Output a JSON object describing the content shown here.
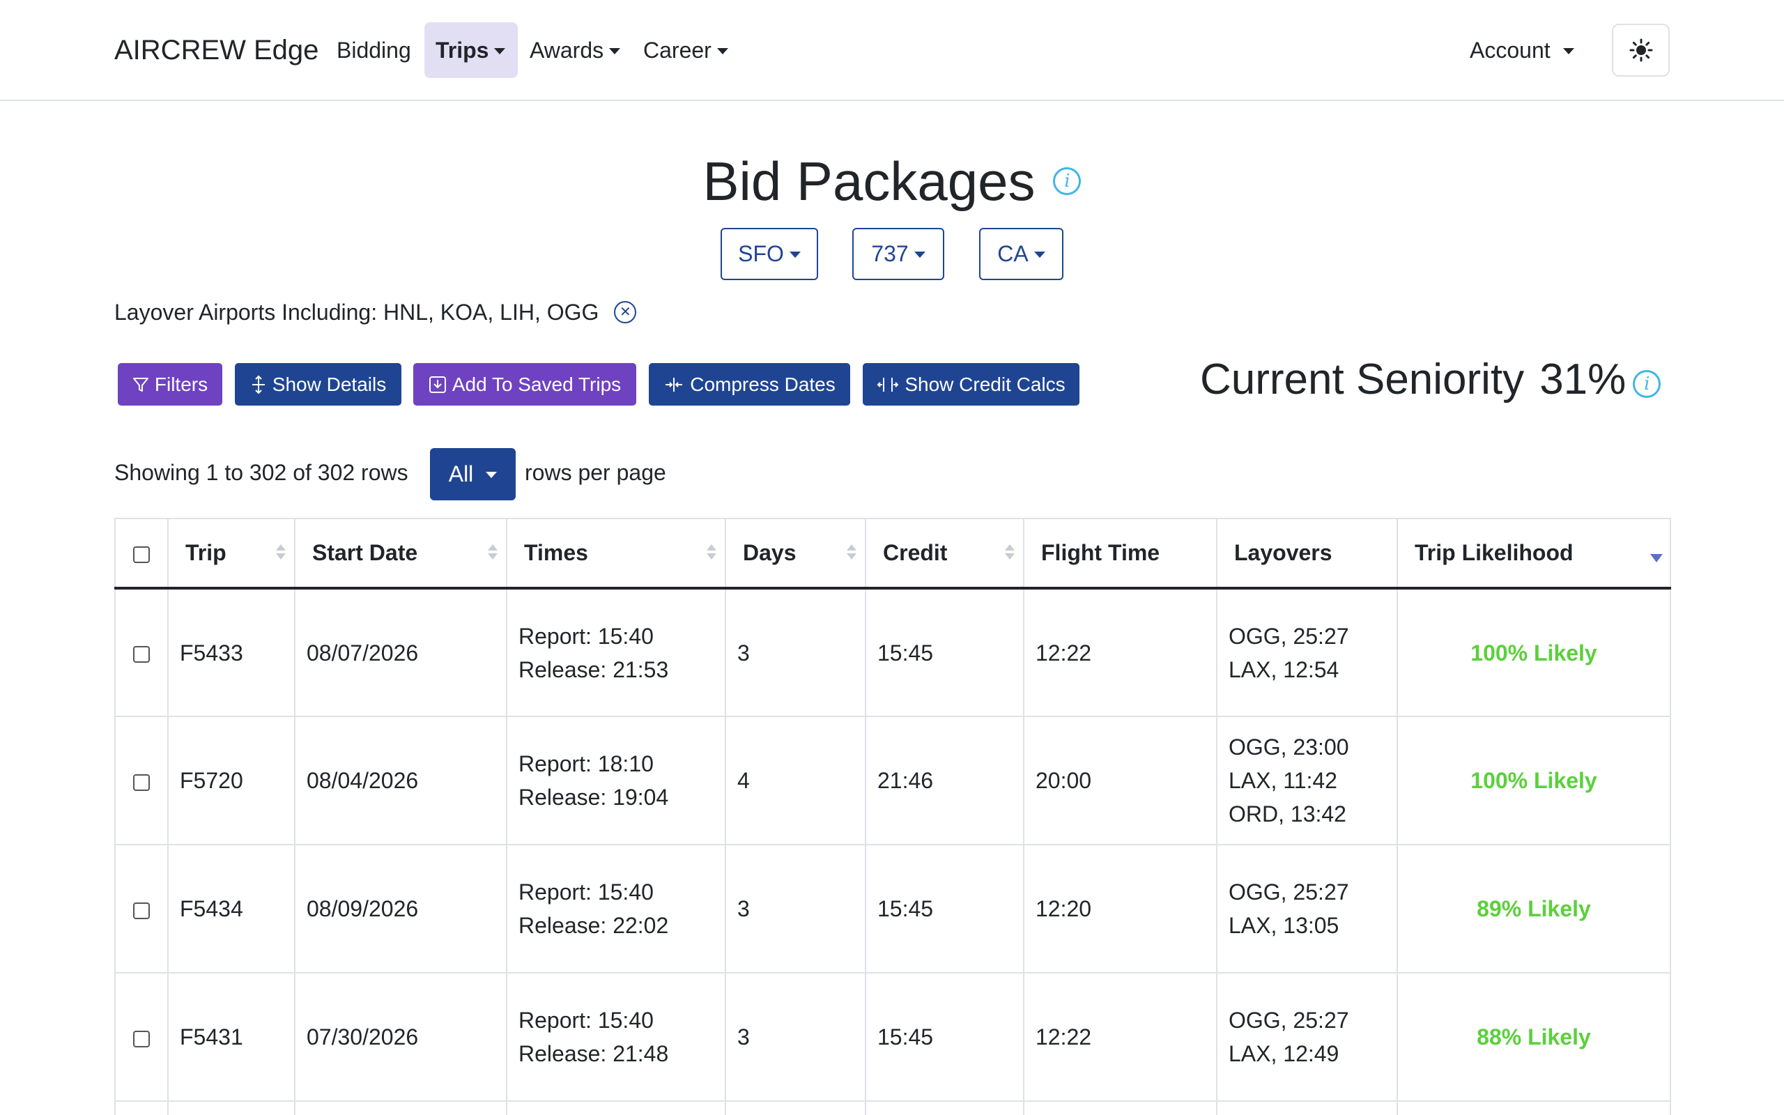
{
  "navbar": {
    "brand": "AIRCREW Edge",
    "items": [
      {
        "label": "Bidding"
      },
      {
        "label": "Trips"
      },
      {
        "label": "Awards"
      },
      {
        "label": "Career"
      }
    ],
    "account_label": "Account",
    "theme_icon": "sun-icon"
  },
  "header": {
    "title": "Bid Packages",
    "filters": {
      "base": "SFO",
      "fleet": "737",
      "seat": "CA"
    },
    "layover_filter": "Layover Airports Including: HNL, KOA, LIH, OGG"
  },
  "toolbar": {
    "filters_label": "Filters",
    "show_details_label": "Show Details",
    "add_saved_label": "Add To Saved Trips",
    "compress_label": "Compress Dates",
    "credit_calcs_label": "Show Credit Calcs"
  },
  "seniority": {
    "label": "Current Seniority",
    "value": "31%"
  },
  "pagination": {
    "showing": "Showing 1 to 302 of 302 rows",
    "page_size": "All",
    "rows_per_page": "rows per page"
  },
  "table": {
    "columns": [
      "Trip",
      "Start Date",
      "Times",
      "Days",
      "Credit",
      "Flight Time",
      "Layovers",
      "Trip Likelihood"
    ],
    "rows": [
      {
        "trip": "F5433",
        "start": "08/07/2026",
        "report": "Report: 15:40",
        "release": "Release: 21:53",
        "days": "3",
        "credit": "15:45",
        "flight": "12:22",
        "layovers": [
          "OGG, 25:27",
          "LAX, 12:54"
        ],
        "likelihood": "100% Likely"
      },
      {
        "trip": "F5720",
        "start": "08/04/2026",
        "report": "Report: 18:10",
        "release": "Release: 19:04",
        "days": "4",
        "credit": "21:46",
        "flight": "20:00",
        "layovers": [
          "OGG, 23:00",
          "LAX, 11:42",
          "ORD, 13:42"
        ],
        "likelihood": "100% Likely"
      },
      {
        "trip": "F5434",
        "start": "08/09/2026",
        "report": "Report: 15:40",
        "release": "Release: 22:02",
        "days": "3",
        "credit": "15:45",
        "flight": "12:20",
        "layovers": [
          "OGG, 25:27",
          "LAX, 13:05"
        ],
        "likelihood": "89% Likely"
      },
      {
        "trip": "F5431",
        "start": "07/30/2026",
        "report": "Report: 15:40",
        "release": "Release: 21:48",
        "days": "3",
        "credit": "15:45",
        "flight": "12:22",
        "layovers": [
          "OGG, 25:27",
          "LAX, 12:49"
        ],
        "likelihood": "88% Likely"
      }
    ]
  },
  "colors": {
    "primary": "#1f4592",
    "purple": "#6f42c1",
    "likely": "#5bd03c",
    "info": "#3fb6e6"
  }
}
